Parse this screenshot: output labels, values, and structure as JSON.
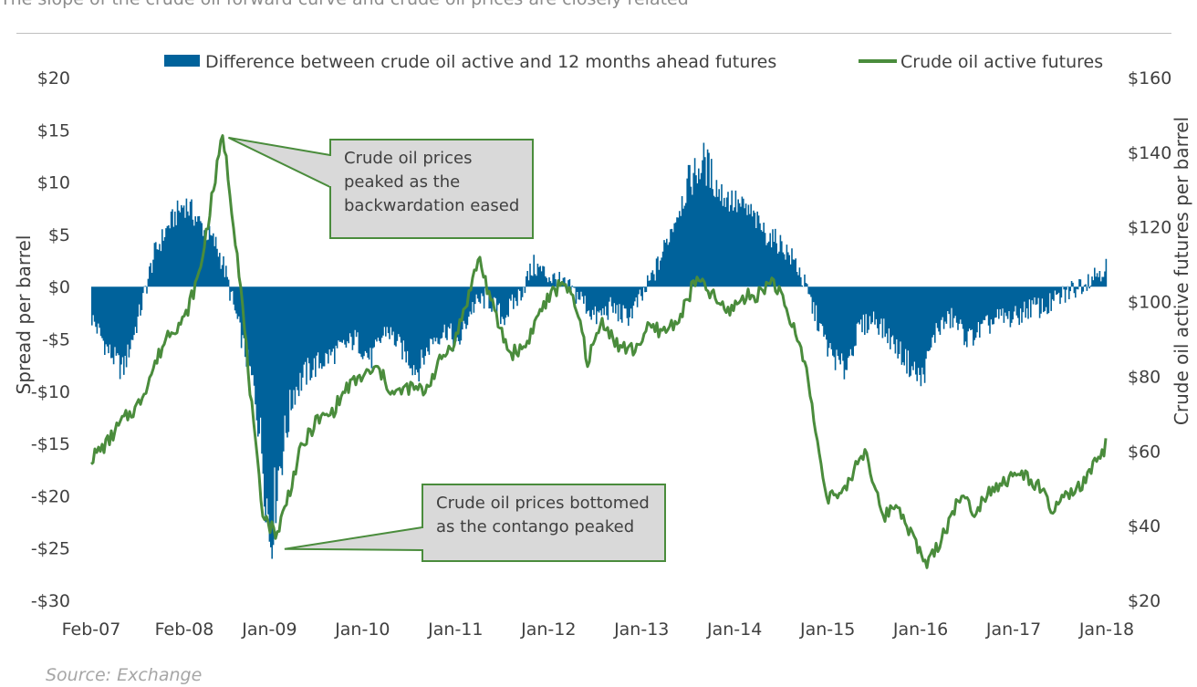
{
  "chart_data": {
    "type": "area+line",
    "title": "The slope of the crude oil forward curve and crude oil prices are closely related",
    "source": "Source: Exchange",
    "x_tick_labels": [
      "Feb-07",
      "Feb-08",
      "Jan-09",
      "Jan-10",
      "Jan-11",
      "Jan-12",
      "Jan-13",
      "Jan-14",
      "Jan-15",
      "Jan-16",
      "Jan-17",
      "Jan-18"
    ],
    "x_tick_dates": [
      "2007-02",
      "2008-02",
      "2009-01",
      "2010-01",
      "2011-01",
      "2012-01",
      "2013-01",
      "2014-01",
      "2015-01",
      "2016-01",
      "2017-01",
      "2018-01"
    ],
    "y_left": {
      "label": "Spread per barrel",
      "ylim": [
        -30,
        20
      ],
      "tick_labels": [
        "$20",
        "$15",
        "$10",
        "$5",
        "$0",
        "-$5",
        "-$10",
        "-$15",
        "-$20",
        "-$25",
        "-$30"
      ],
      "ticks": [
        20,
        15,
        10,
        5,
        0,
        -5,
        -10,
        -15,
        -20,
        -25,
        -30
      ]
    },
    "y_right": {
      "label": "Crude oil active futures  per barrel",
      "ylim": [
        20,
        160
      ],
      "tick_labels": [
        "$160",
        "$140",
        "$120",
        "$100",
        "$80",
        "$60",
        "$40",
        "$20"
      ],
      "ticks": [
        160,
        140,
        120,
        100,
        80,
        60,
        40,
        20
      ]
    },
    "grid": false,
    "legend_position": "top",
    "series": [
      {
        "name": "Difference between crude oil active and 12 months ahead futures",
        "type": "area",
        "axis": "left",
        "color": "#00629B",
        "x": [
          "2007-02",
          "2007-04",
          "2007-06",
          "2007-08",
          "2007-10",
          "2007-12",
          "2008-02",
          "2008-04",
          "2008-06",
          "2008-07",
          "2008-09",
          "2008-11",
          "2008-12",
          "2009-01",
          "2009-02",
          "2009-04",
          "2009-06",
          "2009-08",
          "2009-10",
          "2009-12",
          "2010-02",
          "2010-04",
          "2010-06",
          "2010-08",
          "2010-10",
          "2010-12",
          "2011-01",
          "2011-03",
          "2011-05",
          "2011-07",
          "2011-09",
          "2011-11",
          "2012-01",
          "2012-03",
          "2012-05",
          "2012-07",
          "2012-09",
          "2012-11",
          "2013-01",
          "2013-03",
          "2013-05",
          "2013-07",
          "2013-09",
          "2013-11",
          "2014-01",
          "2014-03",
          "2014-05",
          "2014-07",
          "2014-09",
          "2014-11",
          "2015-01",
          "2015-03",
          "2015-05",
          "2015-07",
          "2015-09",
          "2015-11",
          "2016-01",
          "2016-03",
          "2016-05",
          "2016-07",
          "2016-09",
          "2016-11",
          "2017-01",
          "2017-03",
          "2017-05",
          "2017-07",
          "2017-09",
          "2017-11",
          "2018-01"
        ],
        "values": [
          -3,
          -6,
          -8,
          -3,
          3,
          6,
          8,
          6,
          4,
          2,
          -4,
          -10,
          -16,
          -24,
          -18,
          -10,
          -8,
          -7,
          -6,
          -5,
          -7,
          -4,
          -6,
          -8,
          -5,
          -4,
          -6,
          -2,
          -1,
          -3,
          -1,
          2,
          1,
          0,
          -1,
          -3,
          -2,
          -3,
          -1,
          2,
          6,
          10,
          12,
          9,
          8,
          7,
          5,
          4,
          2,
          -2,
          -6,
          -8,
          -4,
          -3,
          -5,
          -7,
          -9,
          -4,
          -3,
          -5,
          -4,
          -3,
          -3,
          -2,
          -2,
          -1,
          0,
          1,
          2
        ]
      },
      {
        "name": "Crude oil active futures",
        "type": "line",
        "axis": "right",
        "color": "#4A8C3C",
        "x": [
          "2007-02",
          "2007-04",
          "2007-06",
          "2007-08",
          "2007-10",
          "2007-12",
          "2008-02",
          "2008-04",
          "2008-06",
          "2008-07",
          "2008-09",
          "2008-11",
          "2008-12",
          "2009-01",
          "2009-02",
          "2009-03",
          "2009-05",
          "2009-07",
          "2009-09",
          "2009-11",
          "2010-01",
          "2010-03",
          "2010-05",
          "2010-07",
          "2010-09",
          "2010-11",
          "2011-01",
          "2011-03",
          "2011-04",
          "2011-06",
          "2011-08",
          "2011-10",
          "2011-12",
          "2012-03",
          "2012-05",
          "2012-06",
          "2012-08",
          "2012-10",
          "2012-12",
          "2013-02",
          "2013-04",
          "2013-06",
          "2013-08",
          "2013-10",
          "2013-12",
          "2014-02",
          "2014-04",
          "2014-06",
          "2014-08",
          "2014-10",
          "2014-12",
          "2015-01",
          "2015-03",
          "2015-05",
          "2015-06",
          "2015-08",
          "2015-10",
          "2015-12",
          "2016-01",
          "2016-02",
          "2016-04",
          "2016-06",
          "2016-08",
          "2016-10",
          "2016-12",
          "2017-02",
          "2017-04",
          "2017-06",
          "2017-08",
          "2017-10",
          "2017-12",
          "2018-01"
        ],
        "values": [
          58,
          62,
          68,
          72,
          82,
          92,
          95,
          108,
          133,
          145,
          110,
          65,
          45,
          40,
          38,
          45,
          60,
          68,
          70,
          77,
          80,
          82,
          75,
          77,
          76,
          84,
          90,
          104,
          112,
          97,
          86,
          88,
          98,
          106,
          95,
          84,
          95,
          88,
          87,
          93,
          92,
          96,
          106,
          102,
          97,
          101,
          102,
          106,
          96,
          85,
          58,
          48,
          48,
          58,
          60,
          42,
          46,
          37,
          32,
          30,
          38,
          48,
          44,
          50,
          52,
          54,
          51,
          44,
          48,
          51,
          58,
          62
        ]
      }
    ],
    "annotations": [
      {
        "lines": [
          "Crude oil prices",
          "peaked as the",
          "backwardation eased"
        ],
        "points_to": {
          "x": "2008-07",
          "axis": "left",
          "y": 14.6
        }
      },
      {
        "lines": [
          "Crude oil prices bottomed",
          "as the contango peaked"
        ],
        "points_to": {
          "x": "2009-02",
          "axis": "left",
          "y": -25
        }
      }
    ]
  }
}
